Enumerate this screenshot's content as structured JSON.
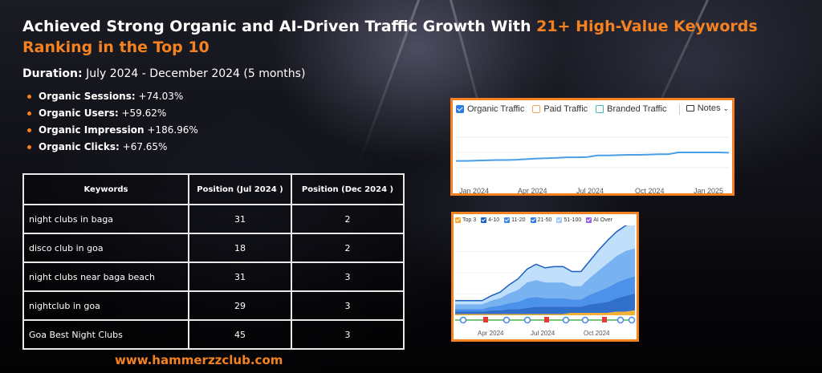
{
  "title": {
    "prefix": "Achieved Strong Organic and AI-Driven Traffic Growth With ",
    "accent": "21+ High-Value Keywords Ranking in the Top 10"
  },
  "duration": {
    "label": "Duration:",
    "value": " July 2024 - December 2024 (5 months)"
  },
  "stats": [
    {
      "label": "Organic Sessions:",
      "value": "  +74.03%"
    },
    {
      "label": "Organic Users:",
      "value": " +59.62%"
    },
    {
      "label": "Organic Impression",
      "value": " +186.96%"
    },
    {
      "label": "Organic  Clicks:",
      "value": " +67.65%"
    }
  ],
  "table": {
    "headers": [
      "Keywords",
      "Position (Jul 2024 )",
      "Position (Dec 2024 )"
    ],
    "rows": [
      [
        "night clubs in baga",
        "31",
        "2"
      ],
      [
        "disco club in goa",
        "18",
        "2"
      ],
      [
        "night clubs near baga beach",
        "31",
        "3"
      ],
      [
        "nightclub in goa",
        "29",
        "3"
      ],
      [
        "Goa Best Night Clubs",
        "45",
        "3"
      ]
    ]
  },
  "website": "www.hammerzzclub.com",
  "traffic_panel": {
    "legend": [
      "Organic Traffic",
      "Paid Traffic",
      "Branded Traffic"
    ],
    "notes_label": "Notes",
    "x_ticks": [
      "Jan 2024",
      "Apr 2024",
      "Jul 2024",
      "Oct 2024",
      "Jan 2025"
    ],
    "colors": {
      "organic": "#4a9ee8",
      "paid": "#f3a35a",
      "branded": "#39b7ad"
    }
  },
  "positions_panel": {
    "legend": [
      "Top 3",
      "4-10",
      "11-20",
      "21-50",
      "51-100",
      "AI Over"
    ],
    "x_ticks": [
      "Apr 2024",
      "Jul 2024",
      "Oct 2024"
    ]
  },
  "chart_data": [
    {
      "type": "line",
      "series": [
        {
          "name": "Organic Traffic",
          "x": [
            0,
            0.5,
            1,
            1.5,
            2,
            2.5,
            3,
            3.5,
            4,
            4.5,
            5,
            5.5,
            6,
            6.5,
            7,
            7.5,
            8,
            8.5,
            9,
            9.5,
            10,
            10.5,
            11,
            11.5,
            12,
            12.5,
            13,
            13.5
          ],
          "values": [
            36,
            36,
            36.5,
            37,
            37.5,
            37.5,
            38,
            39,
            40,
            40.5,
            41,
            42,
            42,
            42.5,
            45,
            45,
            45.5,
            46,
            46,
            46.5,
            47,
            47,
            50,
            50,
            50,
            50,
            50,
            49.5
          ]
        }
      ],
      "categories": [
        "Jan 2024",
        "Apr 2024",
        "Jul 2024",
        "Oct 2024",
        "Jan 2025"
      ],
      "ylim": [
        0,
        100
      ],
      "grid": true,
      "legend": "top-left"
    },
    {
      "type": "area",
      "categories": [
        "Apr 2024",
        "Jul 2024",
        "Oct 2024"
      ],
      "x": [
        0,
        1,
        2,
        3,
        4,
        5,
        6,
        7,
        8,
        9,
        10,
        11,
        12,
        13,
        14,
        15,
        16,
        17,
        18,
        19,
        20
      ],
      "series": [
        {
          "name": "Top 3",
          "values": [
            1,
            1,
            1,
            1,
            1,
            1,
            1,
            1,
            1,
            1,
            1,
            1,
            1,
            2,
            2,
            2,
            2,
            2,
            3,
            3,
            4
          ]
        },
        {
          "name": "4-10",
          "values": [
            2,
            2,
            2,
            2,
            3,
            3,
            4,
            4,
            5,
            6,
            6,
            6,
            6,
            5,
            5,
            7,
            8,
            9,
            11,
            13,
            14
          ]
        },
        {
          "name": "11-20",
          "values": [
            2,
            2,
            2,
            2,
            3,
            4,
            5,
            6,
            8,
            8,
            7,
            7,
            7,
            6,
            6,
            8,
            10,
            12,
            13,
            14,
            14
          ]
        },
        {
          "name": "21-50",
          "values": [
            4,
            4,
            4,
            4,
            5,
            6,
            8,
            10,
            13,
            14,
            13,
            13,
            13,
            11,
            11,
            14,
            17,
            20,
            22,
            23,
            23
          ]
        },
        {
          "name": "51-100",
          "values": [
            3,
            3,
            3,
            3,
            4,
            5,
            7,
            9,
            11,
            13,
            12,
            13,
            13,
            12,
            12,
            14,
            17,
            19,
            20,
            21,
            21
          ]
        }
      ],
      "legend": "top-left"
    }
  ]
}
